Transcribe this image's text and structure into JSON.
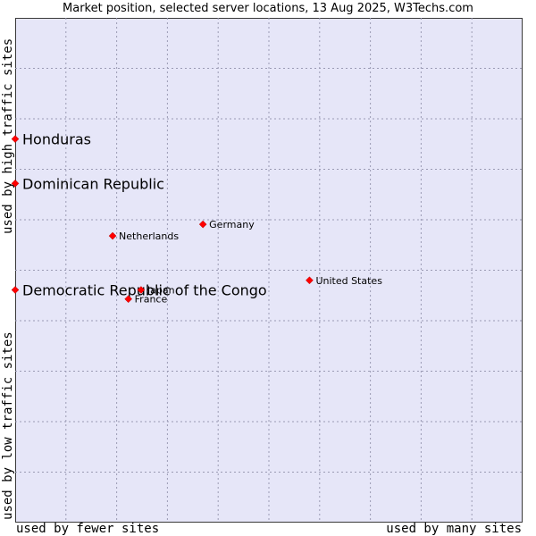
{
  "chart_data": {
    "type": "scatter",
    "title": "Market position, selected server locations, 13 Aug 2025, W3Techs.com",
    "ylabel_high": "used by high traffic sites",
    "ylabel_low": "used by low traffic sites",
    "xlabel_left": "used by fewer sites",
    "xlabel_right": "used by many sites",
    "grid": true,
    "grid_x_divisions": 10,
    "grid_y_divisions": 10,
    "point_color": "#ff0000",
    "background_color": "#e6e6f8",
    "points": [
      {
        "label": "Honduras",
        "x": 0.0,
        "y": 0.76,
        "emphasized": true
      },
      {
        "label": "Dominican Republic",
        "x": 0.0,
        "y": 0.672,
        "emphasized": true
      },
      {
        "label": "Democratic Republic of the Congo",
        "x": 0.0,
        "y": 0.461,
        "emphasized": true
      },
      {
        "label": "Germany",
        "x": 0.37,
        "y": 0.591,
        "emphasized": false
      },
      {
        "label": "Netherlands",
        "x": 0.192,
        "y": 0.568,
        "emphasized": false
      },
      {
        "label": "United States",
        "x": 0.58,
        "y": 0.48,
        "emphasized": false
      },
      {
        "label": "Japan",
        "x": 0.248,
        "y": 0.461,
        "emphasized": false
      },
      {
        "label": "France",
        "x": 0.223,
        "y": 0.443,
        "emphasized": false
      }
    ]
  }
}
